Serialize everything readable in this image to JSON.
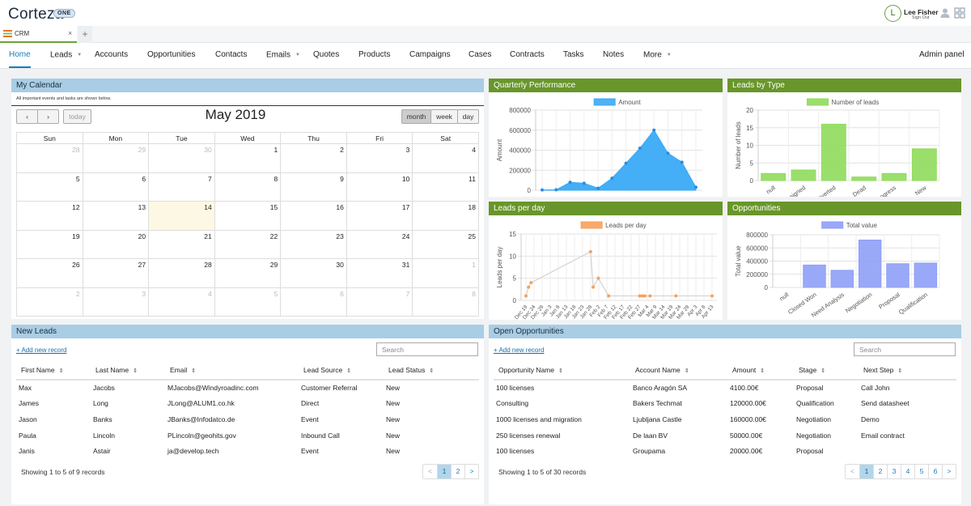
{
  "header": {
    "logo": "Corteza",
    "logo_badge": "ONE",
    "user_initial": "L",
    "user_name": "Lee Fisher",
    "sign_out": "Sign Out"
  },
  "tabs": [
    {
      "label": "CRM",
      "close": "×"
    }
  ],
  "tab_add": "+",
  "nav": {
    "items": [
      {
        "label": "Home",
        "caret": ""
      },
      {
        "label": "Leads",
        "caret": "▼"
      },
      {
        "label": "Accounts",
        "caret": ""
      },
      {
        "label": "Opportunities",
        "caret": ""
      },
      {
        "label": "Contacts",
        "caret": ""
      },
      {
        "label": "Emails",
        "caret": "▼"
      },
      {
        "label": "Quotes",
        "caret": ""
      },
      {
        "label": "Products",
        "caret": ""
      },
      {
        "label": "Campaigns",
        "caret": ""
      },
      {
        "label": "Cases",
        "caret": ""
      },
      {
        "label": "Contracts",
        "caret": ""
      },
      {
        "label": "Tasks",
        "caret": ""
      },
      {
        "label": "Notes",
        "caret": ""
      },
      {
        "label": "More",
        "caret": "▼"
      }
    ],
    "admin": "Admin panel"
  },
  "calendar": {
    "title": "My Calendar",
    "note": "All important events and tasks are shown below.",
    "prev": "‹",
    "next": "›",
    "today_label": "today",
    "views": [
      "month",
      "week",
      "day"
    ],
    "month_title": "May 2019",
    "weekdays": [
      "Sun",
      "Mon",
      "Tue",
      "Wed",
      "Thu",
      "Fri",
      "Sat"
    ],
    "weeks": [
      [
        "28",
        "29",
        "30",
        "1",
        "2",
        "3",
        "4"
      ],
      [
        "5",
        "6",
        "7",
        "8",
        "9",
        "10",
        "11"
      ],
      [
        "12",
        "13",
        "14",
        "15",
        "16",
        "17",
        "18"
      ],
      [
        "19",
        "20",
        "21",
        "22",
        "23",
        "24",
        "25"
      ],
      [
        "26",
        "27",
        "28",
        "29",
        "30",
        "31",
        "1"
      ],
      [
        "2",
        "3",
        "4",
        "5",
        "6",
        "7",
        "8"
      ]
    ]
  },
  "chart_data": [
    {
      "title": "Quarterly Performance",
      "type": "area",
      "color": "#3aaaf5",
      "series_name": "Amount",
      "ylabel": "Amount",
      "ylim": [
        0,
        800000
      ],
      "yticks": [
        0,
        200000,
        400000,
        600000,
        800000
      ],
      "values": [
        3000,
        5000,
        80000,
        70000,
        20000,
        120000,
        270000,
        420000,
        600000,
        370000,
        280000,
        30000
      ]
    },
    {
      "title": "Leads by Type",
      "type": "bar",
      "color": "#8fdc5b",
      "series_name": "Number of leads",
      "ylabel": "Number of leads",
      "ylim": [
        0,
        20
      ],
      "yticks": [
        0,
        5,
        10,
        15,
        20
      ],
      "categories": [
        "null",
        "Assigned",
        "Converted",
        "Dead",
        "In Progress",
        "New"
      ],
      "values": [
        2,
        3,
        16,
        1,
        2,
        9
      ]
    },
    {
      "title": "Leads per day",
      "type": "line",
      "color": "#f7a15c",
      "series_name": "Leads per day",
      "ylabel": "Leads per day",
      "ylim": [
        0,
        15
      ],
      "yticks": [
        0,
        5,
        10,
        15
      ],
      "categories": [
        "Dec 19",
        "Dec 24",
        "Dec 29",
        "Jan 3",
        "Jan 8",
        "Jan 13",
        "Jan 18",
        "Jan 23",
        "Jan 28",
        "Feb 2",
        "Feb 7",
        "Feb 12",
        "Feb 17",
        "Feb 22",
        "Feb 27",
        "Mar 4",
        "Mar 9",
        "Mar 14",
        "Mar 19",
        "Mar 24",
        "Mar 29",
        "Apr 3",
        "Apr 8",
        "Apr 13"
      ],
      "points": [
        [
          0,
          1
        ],
        [
          0.5,
          3
        ],
        [
          1,
          4
        ],
        [
          12.5,
          11
        ],
        [
          13,
          3
        ],
        [
          14,
          5
        ],
        [
          16,
          1
        ],
        [
          22,
          1
        ],
        [
          22.5,
          1
        ],
        [
          23,
          1
        ],
        [
          24,
          1
        ],
        [
          29,
          1
        ],
        [
          36,
          1
        ]
      ],
      "xmax": 36
    },
    {
      "title": "Opportunities",
      "type": "bar",
      "color": "#8f9ff7",
      "series_name": "Total value",
      "ylabel": "Total value",
      "ylim": [
        0,
        800000
      ],
      "yticks": [
        0,
        200000,
        400000,
        600000,
        800000
      ],
      "categories": [
        "null",
        "Closed Won",
        "Need Analysis",
        "Negotiation",
        "Proposal",
        "Qualification"
      ],
      "values": [
        0,
        340000,
        260000,
        720000,
        360000,
        370000
      ]
    }
  ],
  "new_leads": {
    "title": "New Leads",
    "add_label": "+ Add new record",
    "search_placeholder": "Search",
    "columns": [
      "First Name",
      "Last Name",
      "Email",
      "Lead Source",
      "Lead Status"
    ],
    "rows": [
      [
        "Max",
        "Jacobs",
        "MJacobs@Windyroadinc.com",
        "Customer Referral",
        "New"
      ],
      [
        "James",
        "Long",
        "JLong@ALUM1.co.hk",
        "Direct",
        "New"
      ],
      [
        "Jason",
        "Banks",
        "JBanks@Infodatco.de",
        "Event",
        "New"
      ],
      [
        "Paula",
        "Lincoln",
        "PLincoln@geohits.gov",
        "Inbound Call",
        "New"
      ],
      [
        "Janis",
        "Astair",
        "ja@develop.tech",
        "Event",
        "New"
      ]
    ],
    "showing": "Showing 1 to 5 of 9 records",
    "pages": [
      "<",
      "1",
      "2",
      ">"
    ]
  },
  "open_opps": {
    "title": "Open Opportunities",
    "add_label": "+ Add new record",
    "search_placeholder": "Search",
    "columns": [
      "Opportunity Name",
      "Account Name",
      "Amount",
      "Stage",
      "Next Step"
    ],
    "rows": [
      [
        "100 licenses",
        "Banco Aragón SA",
        "4100.00€",
        "Proposal",
        "Call John"
      ],
      [
        "Consulting",
        "Bakers Techmat",
        "120000.00€",
        "Qualification",
        "Send datasheet"
      ],
      [
        "1000 licenses and migration",
        "Ljubljana Castle",
        "160000.00€",
        "Negotiation",
        "Demo"
      ],
      [
        "250 licenses renewal",
        "De laan BV",
        "50000.00€",
        "Negotiation",
        "Email contract"
      ],
      [
        "100 licenses",
        "Groupama",
        "20000.00€",
        "Proposal",
        ""
      ]
    ],
    "showing": "Showing 1 to 5 of 30 records",
    "pages": [
      "<",
      "1",
      "2",
      "3",
      "4",
      "5",
      "6",
      ">"
    ]
  }
}
